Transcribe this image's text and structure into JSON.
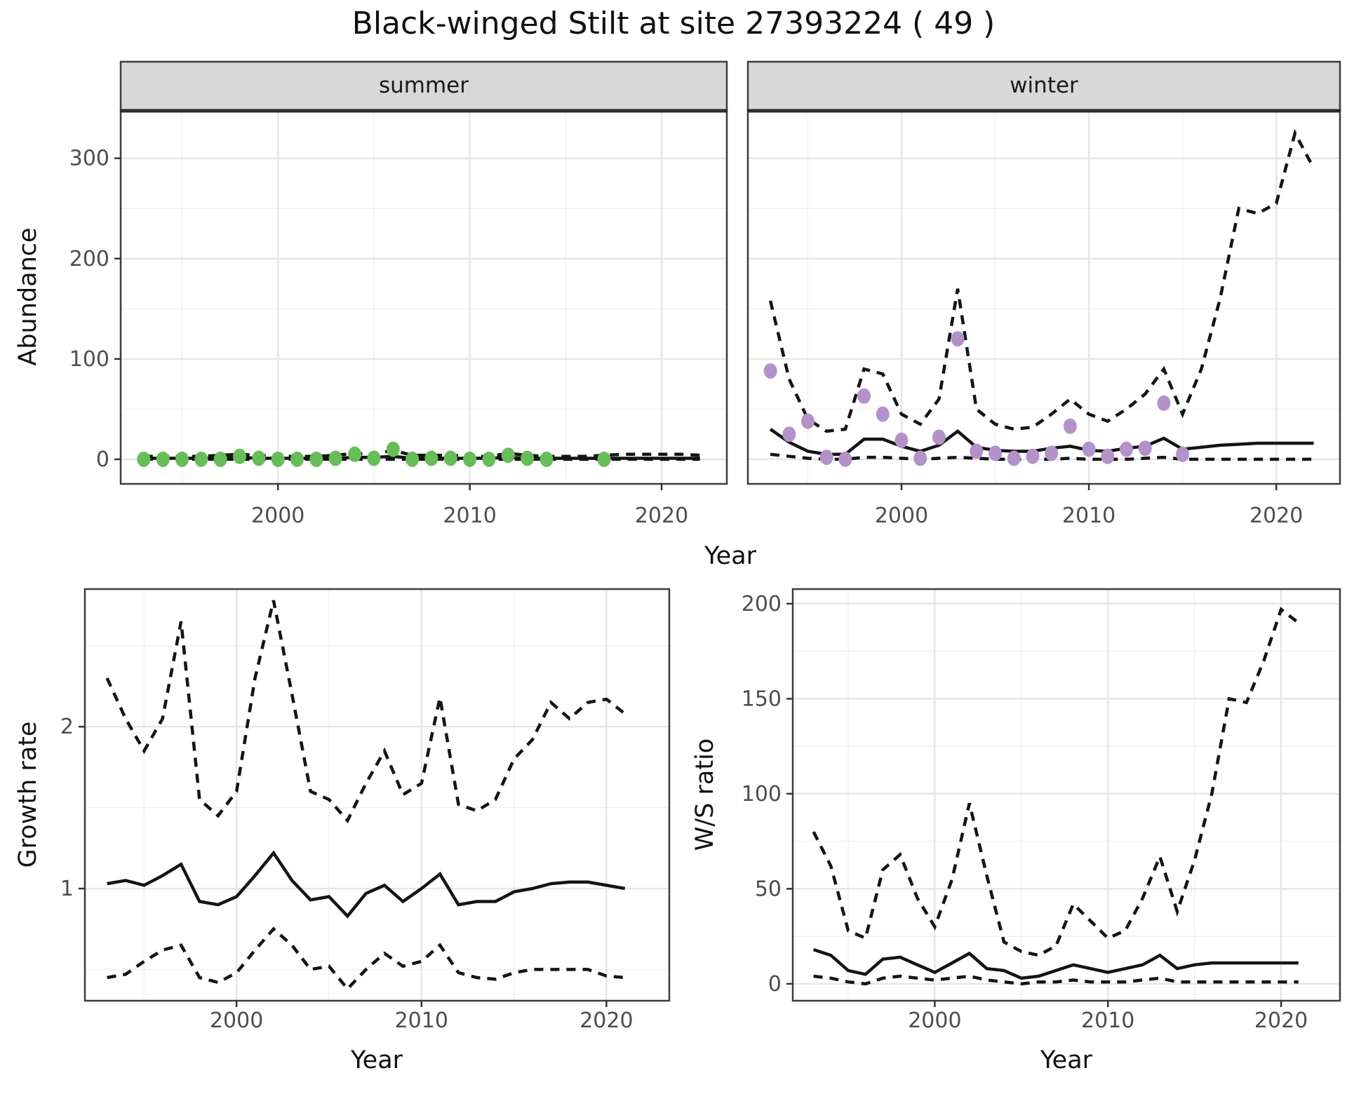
{
  "title": "Black-winged Stilt at site 27393224 ( 49 )",
  "facets": {
    "summer": "summer",
    "winter": "winter"
  },
  "axis_titles": {
    "abundance": "Abundance",
    "growth": "Growth rate",
    "ws": "W/S ratio",
    "year": "Year"
  },
  "colors": {
    "summer_point": "#67bd58",
    "winter_point": "#b392c8",
    "line": "#141414",
    "strip_bg": "#d8d8d8",
    "strip_border": "#3c3c3c",
    "panel_border": "#3c3c3c",
    "grid_major": "#e6e6e6",
    "grid_minor": "#f2f2f2",
    "tick_mark": "#333333",
    "tick_label": "#4d4d4d",
    "panel_bg": "#ffffff"
  },
  "chart_data": [
    {
      "id": "abundance-summer",
      "type": "line",
      "facet": "summer",
      "x": {
        "domain": [
          1991.8,
          2023.4
        ],
        "major_ticks": [
          2000,
          2010,
          2020
        ],
        "minor_ticks": [
          1995,
          2005,
          2015
        ],
        "tick_labels": [
          "2000",
          "2010",
          "2020"
        ]
      },
      "y": {
        "domain": [
          -24.5,
          348
        ],
        "major_ticks": [
          0,
          100,
          200,
          300
        ],
        "minor_ticks": [
          50,
          150,
          250
        ],
        "tick_labels": [
          "0",
          "100",
          "200",
          "300"
        ],
        "show_labels": true
      },
      "series": {
        "years": [
          1993,
          1994,
          1995,
          1996,
          1997,
          1998,
          1999,
          2000,
          2001,
          2002,
          2003,
          2004,
          2005,
          2006,
          2007,
          2008,
          2009,
          2010,
          2011,
          2012,
          2013,
          2014,
          2015,
          2016,
          2017,
          2018,
          2019,
          2020,
          2021,
          2022
        ],
        "median": [
          1,
          1,
          1,
          1,
          1,
          2,
          1,
          1,
          1,
          1,
          1,
          2,
          2,
          3,
          1,
          1,
          1,
          1,
          1,
          2,
          1,
          1,
          1,
          1,
          1,
          1,
          1,
          1,
          1,
          1
        ],
        "upper": [
          3,
          3,
          3,
          3,
          4,
          5,
          4,
          3,
          3,
          3,
          4,
          6,
          5,
          9,
          4,
          4,
          4,
          3,
          3,
          6,
          4,
          3,
          3,
          3,
          4,
          5,
          5,
          5,
          5,
          4
        ],
        "lower": [
          0,
          0,
          0,
          0,
          0,
          0,
          0,
          0,
          0,
          0,
          0,
          0,
          0,
          0,
          0,
          0,
          0,
          0,
          0,
          0,
          0,
          0,
          0,
          0,
          0,
          0,
          0,
          0,
          0,
          0
        ]
      },
      "points": {
        "years": [
          1993,
          1994,
          1995,
          1996,
          1997,
          1998,
          1999,
          2000,
          2001,
          2002,
          2003,
          2004,
          2005,
          2006,
          2007,
          2008,
          2009,
          2010,
          2011,
          2012,
          2013,
          2014,
          2017
        ],
        "values": [
          0,
          0,
          0,
          0,
          0,
          3,
          1,
          0,
          0,
          0,
          1,
          5,
          1,
          10,
          0,
          1,
          1,
          0,
          0,
          4,
          1,
          0,
          0
        ],
        "color_key": "summer_point"
      }
    },
    {
      "id": "abundance-winter",
      "type": "line",
      "facet": "winter",
      "x": {
        "domain": [
          1991.8,
          2023.4
        ],
        "major_ticks": [
          2000,
          2010,
          2020
        ],
        "minor_ticks": [
          1995,
          2005,
          2015
        ],
        "tick_labels": [
          "2000",
          "2010",
          "2020"
        ]
      },
      "y": {
        "domain": [
          -24.5,
          348
        ],
        "major_ticks": [
          0,
          100,
          200,
          300
        ],
        "minor_ticks": [
          50,
          150,
          250
        ],
        "tick_labels": [
          "0",
          "100",
          "200",
          "300"
        ],
        "show_labels": false
      },
      "series": {
        "years": [
          1993,
          1994,
          1995,
          1996,
          1997,
          1998,
          1999,
          2000,
          2001,
          2002,
          2003,
          2004,
          2005,
          2006,
          2007,
          2008,
          2009,
          2010,
          2011,
          2012,
          2013,
          2014,
          2015,
          2016,
          2017,
          2018,
          2019,
          2020,
          2021,
          2022
        ],
        "median": [
          30,
          17,
          8,
          5,
          5,
          20,
          20,
          13,
          8,
          14,
          28,
          12,
          9,
          8,
          8,
          11,
          13,
          9,
          8,
          11,
          13,
          21,
          10,
          12,
          14,
          15,
          16,
          16,
          16,
          16
        ],
        "upper": [
          158,
          80,
          40,
          28,
          30,
          90,
          85,
          45,
          35,
          60,
          170,
          50,
          35,
          30,
          32,
          45,
          60,
          45,
          38,
          50,
          65,
          90,
          45,
          90,
          160,
          250,
          245,
          255,
          325,
          290
        ],
        "lower": [
          5,
          3,
          1,
          0,
          0,
          2,
          2,
          1,
          0,
          1,
          2,
          1,
          0,
          0,
          0,
          0,
          1,
          0,
          0,
          0,
          1,
          2,
          0,
          0,
          0,
          0,
          0,
          0,
          0,
          0
        ]
      },
      "points": {
        "years": [
          1993,
          1994,
          1995,
          1996,
          1997,
          1998,
          1999,
          2000,
          2001,
          2002,
          2003,
          2004,
          2005,
          2006,
          2007,
          2008,
          2009,
          2010,
          2011,
          2012,
          2013,
          2014,
          2015
        ],
        "values": [
          88,
          25,
          38,
          2,
          0,
          63,
          45,
          19,
          1,
          22,
          120,
          8,
          6,
          1,
          3,
          6,
          33,
          10,
          3,
          10,
          11,
          56,
          5
        ],
        "color_key": "winter_point"
      }
    },
    {
      "id": "growth-rate",
      "type": "line",
      "facet": null,
      "x": {
        "domain": [
          1991.8,
          2023.4
        ],
        "major_ticks": [
          2000,
          2010,
          2020
        ],
        "minor_ticks": [
          1995,
          2005,
          2015
        ],
        "tick_labels": [
          "2000",
          "2010",
          "2020"
        ]
      },
      "y": {
        "domain": [
          0.307,
          2.85
        ],
        "major_ticks": [
          1,
          2
        ],
        "minor_ticks": [
          0.5,
          1.5,
          2.5
        ],
        "tick_labels": [
          "1",
          "2"
        ],
        "show_labels": true
      },
      "series": {
        "years": [
          1993,
          1994,
          1995,
          1996,
          1997,
          1998,
          1999,
          2000,
          2001,
          2002,
          2003,
          2004,
          2005,
          2006,
          2007,
          2008,
          2009,
          2010,
          2011,
          2012,
          2013,
          2014,
          2015,
          2016,
          2017,
          2018,
          2019,
          2020,
          2021
        ],
        "median": [
          1.03,
          1.05,
          1.02,
          1.08,
          1.15,
          0.92,
          0.9,
          0.95,
          1.08,
          1.22,
          1.05,
          0.93,
          0.95,
          0.83,
          0.97,
          1.02,
          0.92,
          1.0,
          1.09,
          0.9,
          0.92,
          0.92,
          0.98,
          1.0,
          1.03,
          1.04,
          1.04,
          1.02,
          1.0
        ],
        "upper": [
          2.3,
          2.05,
          1.85,
          2.05,
          2.65,
          1.55,
          1.45,
          1.6,
          2.3,
          2.78,
          2.2,
          1.6,
          1.55,
          1.42,
          1.65,
          1.85,
          1.58,
          1.65,
          2.18,
          1.52,
          1.48,
          1.55,
          1.8,
          1.92,
          2.15,
          2.05,
          2.15,
          2.17,
          2.08
        ],
        "lower": [
          0.45,
          0.47,
          0.55,
          0.62,
          0.65,
          0.45,
          0.42,
          0.48,
          0.62,
          0.75,
          0.65,
          0.5,
          0.52,
          0.38,
          0.5,
          0.6,
          0.52,
          0.55,
          0.65,
          0.48,
          0.45,
          0.44,
          0.48,
          0.5,
          0.5,
          0.5,
          0.5,
          0.46,
          0.45
        ]
      },
      "points": null
    },
    {
      "id": "ws-ratio",
      "type": "line",
      "facet": null,
      "x": {
        "domain": [
          1991.8,
          2023.4
        ],
        "major_ticks": [
          2000,
          2010,
          2020
        ],
        "minor_ticks": [
          1995,
          2005,
          2015
        ],
        "tick_labels": [
          "2000",
          "2010",
          "2020"
        ]
      },
      "y": {
        "domain": [
          -8.9,
          207.7
        ],
        "major_ticks": [
          0,
          50,
          100,
          150,
          200
        ],
        "minor_ticks": [
          25,
          75,
          125,
          175
        ],
        "tick_labels": [
          "0",
          "50",
          "100",
          "150",
          "200"
        ],
        "show_labels": true
      },
      "series": {
        "years": [
          1993,
          1994,
          1995,
          1996,
          1997,
          1998,
          1999,
          2000,
          2001,
          2002,
          2003,
          2004,
          2005,
          2006,
          2007,
          2008,
          2009,
          2010,
          2011,
          2012,
          2013,
          2014,
          2015,
          2016,
          2017,
          2018,
          2019,
          2020,
          2021
        ],
        "median": [
          18,
          15,
          7,
          5,
          13,
          14,
          10,
          6,
          11,
          16,
          8,
          7,
          3,
          4,
          7,
          10,
          8,
          6,
          8,
          10,
          15,
          8,
          10,
          11,
          11,
          11,
          11,
          11,
          11
        ],
        "upper": [
          80,
          62,
          28,
          24,
          60,
          68,
          45,
          30,
          55,
          95,
          57,
          22,
          17,
          15,
          20,
          42,
          33,
          24,
          28,
          45,
          67,
          38,
          65,
          100,
          150,
          148,
          170,
          197,
          190
        ],
        "lower": [
          4,
          3,
          1,
          0,
          3,
          4,
          3,
          2,
          3,
          4,
          2,
          1,
          0,
          1,
          1,
          2,
          1,
          1,
          1,
          2,
          3,
          1,
          1,
          1,
          1,
          1,
          1,
          1,
          1
        ]
      },
      "points": null
    }
  ]
}
